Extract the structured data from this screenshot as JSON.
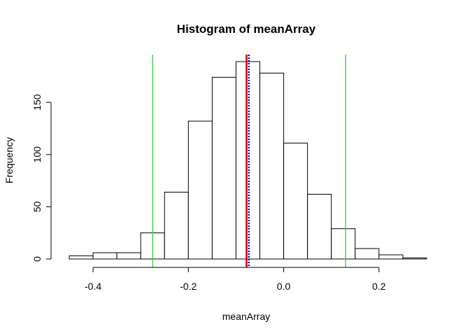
{
  "chart_data": {
    "type": "bar",
    "title": "Histogram of meanArray",
    "xlabel": "meanArray",
    "ylabel": "Frequency",
    "xlim": [
      -0.45,
      0.3
    ],
    "ylim": [
      0,
      195
    ],
    "bin_edges": [
      -0.45,
      -0.4,
      -0.35,
      -0.3,
      -0.25,
      -0.2,
      -0.15,
      -0.1,
      -0.05,
      0.0,
      0.05,
      0.1,
      0.15,
      0.2,
      0.25,
      0.3
    ],
    "values": [
      3,
      6,
      6,
      25,
      64,
      132,
      174,
      189,
      178,
      111,
      62,
      29,
      10,
      4,
      1
    ],
    "x_ticks": [
      -0.4,
      -0.2,
      0.0,
      0.2
    ],
    "x_tick_labels": [
      "-0.4",
      "-0.2",
      "0.0",
      "0.2"
    ],
    "y_ticks": [
      0,
      50,
      100,
      150
    ],
    "y_tick_labels": [
      "0",
      "50",
      "100",
      "150"
    ],
    "vertical_lines": [
      {
        "x": -0.275,
        "color": "#33cc33",
        "style": "solid"
      },
      {
        "x": 0.13,
        "color": "#33cc33",
        "style": "solid"
      },
      {
        "x": -0.078,
        "color": "#dd0000",
        "style": "solid"
      },
      {
        "x": -0.073,
        "color": "#0000cc",
        "style": "dotted"
      }
    ],
    "grid": false,
    "legend": "none"
  }
}
